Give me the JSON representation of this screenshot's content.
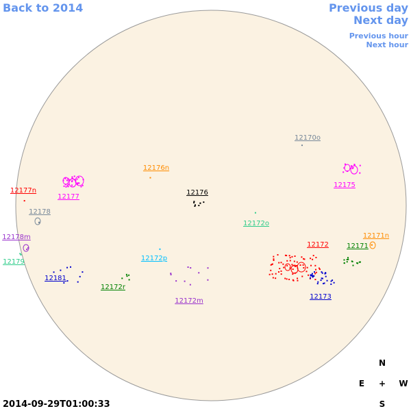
{
  "nav": {
    "back": "Back to 2014",
    "previous_day": "Previous day",
    "next_day": "Next day",
    "previous_hour": "Previous hour",
    "next_hour": "Next hour"
  },
  "regions": [
    {
      "label": "12170o",
      "color": "#778899"
    },
    {
      "label": "12176n",
      "color": "#ff8c00"
    },
    {
      "label": "12175",
      "color": "#ff00ff"
    },
    {
      "label": "12177n",
      "color": "#ff0000"
    },
    {
      "label": "12177",
      "color": "#ff00ff"
    },
    {
      "label": "12176",
      "color": "#000000"
    },
    {
      "label": "12178",
      "color": "#778899"
    },
    {
      "label": "12172o",
      "color": "#2ecc8a"
    },
    {
      "label": "12171n",
      "color": "#ff8c00"
    },
    {
      "label": "12178m",
      "color": "#9932cc"
    },
    {
      "label": "12172",
      "color": "#ff0000"
    },
    {
      "label": "12171",
      "color": "#008000"
    },
    {
      "label": "12172p",
      "color": "#00bfff"
    },
    {
      "label": "12179",
      "color": "#2ecc8a"
    },
    {
      "label": "12181",
      "color": "#0000cd"
    },
    {
      "label": "12172r",
      "color": "#008000"
    },
    {
      "label": "12173",
      "color": "#0000cd"
    },
    {
      "label": "12172m",
      "color": "#9932cc"
    }
  ],
  "compass": {
    "north": "N",
    "east": "E",
    "center": "+",
    "west": "W",
    "south": "S"
  },
  "timestamp": "2014-09-29T01:00:33"
}
